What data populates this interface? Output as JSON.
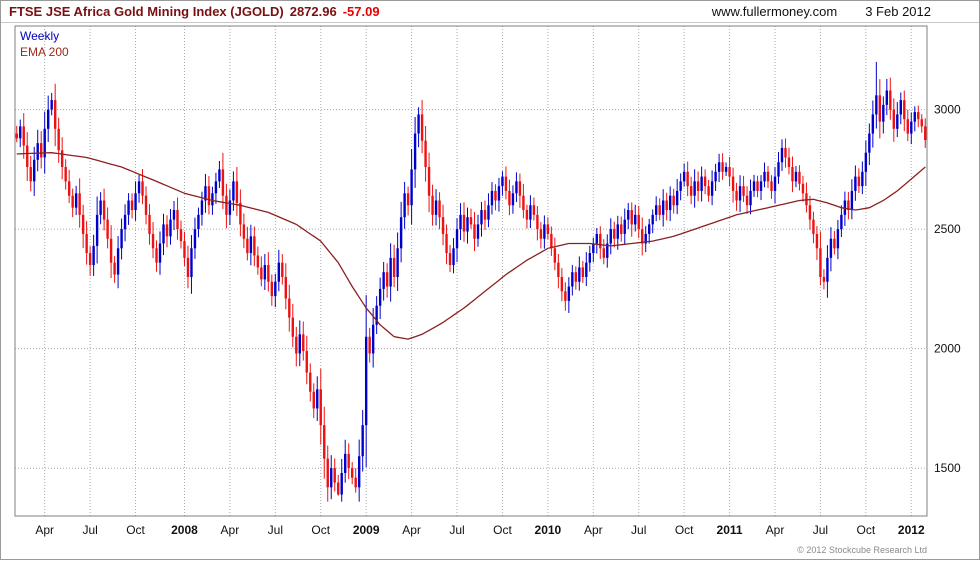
{
  "header": {
    "title": "FTSE JSE Africa Gold Mining Index (JGOLD)",
    "price": "2872.96",
    "change": "-57.09",
    "site": "www.fullermoney.com",
    "date": "3 Feb 2012"
  },
  "legend": {
    "weekly": "Weekly",
    "ema": "EMA 200"
  },
  "footer": {
    "copyright": "© 2012 Stockcube Research Ltd"
  },
  "colors": {
    "up": "#0000cc",
    "down": "#ee1111",
    "ema": "#8b2020",
    "grid": "#aaaaaa",
    "border": "#808080",
    "axis_text": "#111111"
  },
  "chart_data": {
    "type": "candlestick",
    "title": "FTSE JSE Africa Gold Mining Index (JGOLD)",
    "interval": "Weekly",
    "overlay": "EMA 200",
    "last": {
      "close": 2872.96,
      "change": -57.09
    },
    "y_axis": {
      "side": "right",
      "min": 1300,
      "max": 3350,
      "ticks": [
        1500,
        2000,
        2500,
        3000
      ]
    },
    "x_labels": [
      {
        "label": "Apr",
        "i": 8
      },
      {
        "label": "Jul",
        "i": 21
      },
      {
        "label": "Oct",
        "i": 34
      },
      {
        "label": "2008",
        "i": 48
      },
      {
        "label": "Apr",
        "i": 61
      },
      {
        "label": "Jul",
        "i": 74
      },
      {
        "label": "Oct",
        "i": 87
      },
      {
        "label": "2009",
        "i": 100
      },
      {
        "label": "Apr",
        "i": 113
      },
      {
        "label": "Jul",
        "i": 126
      },
      {
        "label": "Oct",
        "i": 139
      },
      {
        "label": "2010",
        "i": 152
      },
      {
        "label": "Apr",
        "i": 165
      },
      {
        "label": "Jul",
        "i": 178
      },
      {
        "label": "Oct",
        "i": 191
      },
      {
        "label": "2011",
        "i": 204
      },
      {
        "label": "Apr",
        "i": 217
      },
      {
        "label": "Jul",
        "i": 230
      },
      {
        "label": "Oct",
        "i": 243
      },
      {
        "label": "2012",
        "i": 256
      }
    ],
    "closes": [
      2880,
      2930,
      2850,
      2760,
      2700,
      2790,
      2860,
      2800,
      2920,
      3000,
      3040,
      2920,
      2830,
      2760,
      2700,
      2640,
      2590,
      2650,
      2560,
      2480,
      2400,
      2350,
      2430,
      2560,
      2620,
      2540,
      2460,
      2360,
      2310,
      2420,
      2500,
      2560,
      2620,
      2580,
      2650,
      2700,
      2640,
      2560,
      2480,
      2420,
      2360,
      2440,
      2520,
      2470,
      2540,
      2580,
      2500,
      2450,
      2380,
      2300,
      2420,
      2500,
      2560,
      2620,
      2680,
      2600,
      2650,
      2700,
      2750,
      2640,
      2560,
      2620,
      2700,
      2610,
      2520,
      2460,
      2400,
      2470,
      2390,
      2340,
      2290,
      2350,
      2280,
      2220,
      2280,
      2360,
      2300,
      2210,
      2130,
      2050,
      1980,
      2060,
      1990,
      1900,
      1820,
      1750,
      1830,
      1680,
      1540,
      1420,
      1500,
      1440,
      1390,
      1480,
      1560,
      1500,
      1460,
      1420,
      1550,
      1680,
      2050,
      1980,
      2100,
      2180,
      2250,
      2320,
      2260,
      2380,
      2300,
      2420,
      2550,
      2650,
      2600,
      2750,
      2900,
      2980,
      2870,
      2760,
      2640,
      2560,
      2620,
      2550,
      2480,
      2400,
      2350,
      2420,
      2500,
      2560,
      2490,
      2550,
      2520,
      2460,
      2520,
      2580,
      2540,
      2600,
      2660,
      2620,
      2680,
      2720,
      2660,
      2600,
      2650,
      2700,
      2640,
      2580,
      2540,
      2600,
      2560,
      2500,
      2460,
      2520,
      2480,
      2420,
      2360,
      2300,
      2240,
      2200,
      2260,
      2320,
      2280,
      2340,
      2300,
      2360,
      2400,
      2440,
      2480,
      2420,
      2380,
      2440,
      2500,
      2460,
      2520,
      2480,
      2540,
      2580,
      2520,
      2560,
      2500,
      2440,
      2480,
      2520,
      2560,
      2600,
      2560,
      2620,
      2580,
      2640,
      2600,
      2660,
      2700,
      2740,
      2680,
      2640,
      2700,
      2660,
      2720,
      2680,
      2640,
      2700,
      2740,
      2780,
      2740,
      2760,
      2720,
      2660,
      2620,
      2680,
      2640,
      2600,
      2660,
      2700,
      2660,
      2700,
      2740,
      2700,
      2660,
      2720,
      2780,
      2840,
      2800,
      2760,
      2700,
      2740,
      2690,
      2650,
      2600,
      2540,
      2480,
      2420,
      2300,
      2280,
      2380,
      2460,
      2420,
      2500,
      2560,
      2620,
      2580,
      2660,
      2720,
      2680,
      2740,
      2820,
      2900,
      2980,
      3060,
      2950,
      3020,
      3080,
      3000,
      2920,
      2980,
      3040,
      2960,
      2900,
      2950,
      2990,
      2960,
      2930.05,
      2872.96
    ],
    "high_overrides": {
      "10": 3070,
      "115": 3010,
      "246": 3200
    },
    "low_overrides": {
      "92": 1385,
      "230": 2265
    },
    "ema_200": [
      [
        0,
        2815
      ],
      [
        10,
        2820
      ],
      [
        20,
        2800
      ],
      [
        30,
        2760
      ],
      [
        40,
        2700
      ],
      [
        48,
        2650
      ],
      [
        56,
        2620
      ],
      [
        64,
        2600
      ],
      [
        72,
        2570
      ],
      [
        80,
        2520
      ],
      [
        87,
        2450
      ],
      [
        92,
        2360
      ],
      [
        96,
        2260
      ],
      [
        100,
        2170
      ],
      [
        104,
        2100
      ],
      [
        108,
        2050
      ],
      [
        112,
        2040
      ],
      [
        116,
        2060
      ],
      [
        122,
        2110
      ],
      [
        128,
        2170
      ],
      [
        134,
        2240
      ],
      [
        140,
        2310
      ],
      [
        146,
        2370
      ],
      [
        152,
        2420
      ],
      [
        158,
        2440
      ],
      [
        164,
        2440
      ],
      [
        170,
        2430
      ],
      [
        176,
        2440
      ],
      [
        182,
        2450
      ],
      [
        188,
        2470
      ],
      [
        194,
        2500
      ],
      [
        200,
        2530
      ],
      [
        206,
        2560
      ],
      [
        212,
        2580
      ],
      [
        218,
        2600
      ],
      [
        224,
        2620
      ],
      [
        228,
        2625
      ],
      [
        232,
        2610
      ],
      [
        236,
        2590
      ],
      [
        240,
        2580
      ],
      [
        244,
        2590
      ],
      [
        248,
        2620
      ],
      [
        252,
        2660
      ],
      [
        256,
        2710
      ],
      [
        260,
        2760
      ]
    ]
  }
}
